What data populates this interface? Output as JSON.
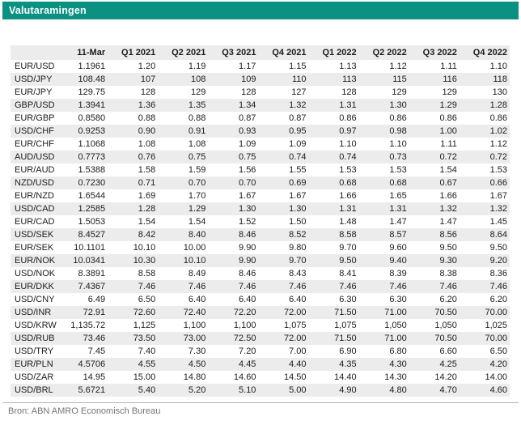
{
  "title": "Valutaramingen",
  "footer": {
    "source": "Bron: ABN AMRO Economisch Bureau"
  },
  "colors": {
    "accent": "#0a9182",
    "header_bg": "#ececec",
    "stripe_bg": "#ececec",
    "text": "#1c1c1c",
    "footer_text": "#757575",
    "rule": "#b3b3b3"
  },
  "chart_data": {
    "type": "table",
    "title": "Valutaramingen",
    "columns": [
      "",
      "11-Mar",
      "Q1 2021",
      "Q2 2021",
      "Q3 2021",
      "Q4 2021",
      "Q1 2022",
      "Q2 2022",
      "Q3 2022",
      "Q4 2022"
    ],
    "rows": [
      {
        "label": "EUR/USD",
        "values": [
          "1.1961",
          "1.20",
          "1.19",
          "1.17",
          "1.15",
          "1.13",
          "1.12",
          "1.11",
          "1.10"
        ]
      },
      {
        "label": "USD/JPY",
        "values": [
          "108.48",
          "107",
          "108",
          "109",
          "110",
          "113",
          "115",
          "116",
          "118"
        ]
      },
      {
        "label": "EUR/JPY",
        "values": [
          "129.75",
          "128",
          "129",
          "128",
          "127",
          "128",
          "129",
          "129",
          "130"
        ]
      },
      {
        "label": "GBP/USD",
        "values": [
          "1.3941",
          "1.36",
          "1.35",
          "1.34",
          "1.32",
          "1.31",
          "1.30",
          "1.29",
          "1.28"
        ]
      },
      {
        "label": "EUR/GBP",
        "values": [
          "0.8580",
          "0.88",
          "0.88",
          "0.87",
          "0.87",
          "0.86",
          "0.86",
          "0.86",
          "0.86"
        ]
      },
      {
        "label": "USD/CHF",
        "values": [
          "0.9253",
          "0.90",
          "0.91",
          "0.93",
          "0.95",
          "0.97",
          "0.98",
          "1.00",
          "1.02"
        ]
      },
      {
        "label": "EUR/CHF",
        "values": [
          "1.1068",
          "1.08",
          "1.08",
          "1.09",
          "1.09",
          "1.10",
          "1.10",
          "1.11",
          "1.12"
        ]
      },
      {
        "label": "AUD/USD",
        "values": [
          "0.7773",
          "0.76",
          "0.75",
          "0.75",
          "0.74",
          "0.74",
          "0.73",
          "0.72",
          "0.72"
        ]
      },
      {
        "label": "EUR/AUD",
        "values": [
          "1.5388",
          "1.58",
          "1.59",
          "1.56",
          "1.55",
          "1.53",
          "1.53",
          "1.54",
          "1.53"
        ]
      },
      {
        "label": "NZD/USD",
        "values": [
          "0.7230",
          "0.71",
          "0.70",
          "0.70",
          "0.69",
          "0.68",
          "0.68",
          "0.67",
          "0.66"
        ]
      },
      {
        "label": "EUR/NZD",
        "values": [
          "1.6544",
          "1.69",
          "1.70",
          "1.67",
          "1.67",
          "1.66",
          "1.65",
          "1.66",
          "1.67"
        ]
      },
      {
        "label": "USD/CAD",
        "values": [
          "1.2585",
          "1.28",
          "1.29",
          "1.30",
          "1.30",
          "1.31",
          "1.31",
          "1.32",
          "1.32"
        ]
      },
      {
        "label": "EUR/CAD",
        "values": [
          "1.5053",
          "1.54",
          "1.54",
          "1.52",
          "1.50",
          "1.48",
          "1.47",
          "1.47",
          "1.45"
        ]
      },
      {
        "label": "USD/SEK",
        "values": [
          "8.4527",
          "8.42",
          "8.40",
          "8.46",
          "8.52",
          "8.58",
          "8.57",
          "8.56",
          "8.64"
        ]
      },
      {
        "label": "EUR/SEK",
        "values": [
          "10.1101",
          "10.10",
          "10.00",
          "9.90",
          "9.80",
          "9.70",
          "9.60",
          "9.50",
          "9.50"
        ]
      },
      {
        "label": "EUR/NOK",
        "values": [
          "10.0341",
          "10.30",
          "10.10",
          "9.90",
          "9.70",
          "9.50",
          "9.40",
          "9.30",
          "9.20"
        ]
      },
      {
        "label": "USD/NOK",
        "values": [
          "8.3891",
          "8.58",
          "8.49",
          "8.46",
          "8.43",
          "8.41",
          "8.39",
          "8.38",
          "8.36"
        ]
      },
      {
        "label": "EUR/DKK",
        "values": [
          "7.4367",
          "7.46",
          "7.46",
          "7.46",
          "7.46",
          "7.46",
          "7.46",
          "7.46",
          "7.46"
        ]
      },
      {
        "label": "USD/CNY",
        "values": [
          "6.49",
          "6.50",
          "6.40",
          "6.40",
          "6.40",
          "6.30",
          "6.30",
          "6.20",
          "6.20"
        ]
      },
      {
        "label": "USD/INR",
        "values": [
          "72.91",
          "72.60",
          "72.40",
          "72.20",
          "72.00",
          "71.50",
          "71.00",
          "70.50",
          "70.00"
        ]
      },
      {
        "label": "USD/KRW",
        "values": [
          "1,135.72",
          "1,125",
          "1,100",
          "1,100",
          "1,075",
          "1,075",
          "1,050",
          "1,050",
          "1,025"
        ]
      },
      {
        "label": "USD/RUB",
        "values": [
          "73.46",
          "73.50",
          "73.00",
          "72.50",
          "72.00",
          "71.50",
          "71.00",
          "70.50",
          "70.00"
        ]
      },
      {
        "label": "USD/TRY",
        "values": [
          "7.45",
          "7.40",
          "7.30",
          "7.20",
          "7.00",
          "6.90",
          "6.80",
          "6.60",
          "6.50"
        ]
      },
      {
        "label": "EUR/PLN",
        "values": [
          "4.5706",
          "4.55",
          "4.50",
          "4.45",
          "4.40",
          "4.35",
          "4.30",
          "4.25",
          "4.20"
        ]
      },
      {
        "label": "USD/ZAR",
        "values": [
          "14.95",
          "15.00",
          "14.80",
          "14.60",
          "14.50",
          "14.40",
          "14.30",
          "14.20",
          "14.00"
        ]
      },
      {
        "label": "USD/BRL",
        "values": [
          "5.6721",
          "5.40",
          "5.20",
          "5.10",
          "5.00",
          "4.90",
          "4.80",
          "4.70",
          "4.60"
        ]
      }
    ],
    "source": "Bron: ABN AMRO Economisch Bureau"
  }
}
